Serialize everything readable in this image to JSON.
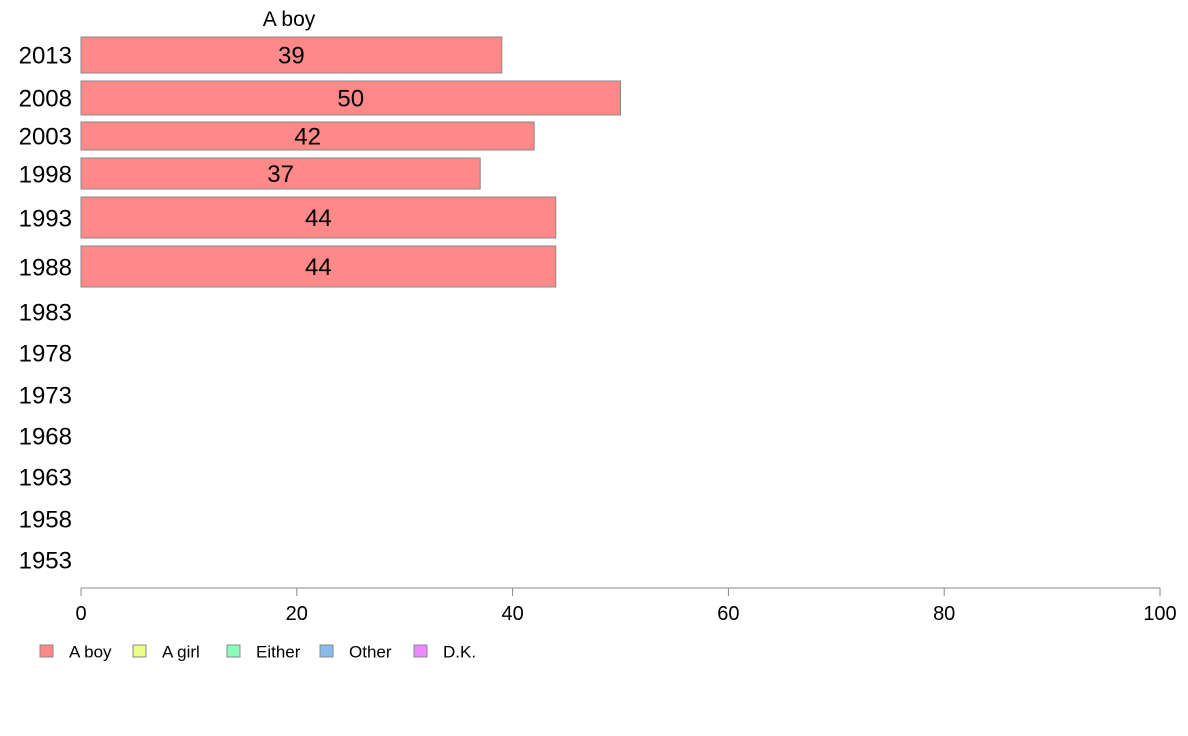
{
  "chart_data": {
    "type": "bar",
    "orientation": "horizontal",
    "title": "A boy",
    "categories": [
      "2013",
      "2008",
      "2003",
      "1998",
      "1993",
      "1988",
      "1983",
      "1978",
      "1973",
      "1968",
      "1963",
      "1958",
      "1953"
    ],
    "series": [
      {
        "name": "A boy",
        "color": "#ff8888",
        "values": [
          39,
          50,
          42,
          37,
          44,
          44,
          null,
          null,
          null,
          null,
          null,
          null,
          null
        ],
        "labels": [
          "39",
          "50",
          "42",
          "37",
          "44",
          "44",
          "",
          "",
          "",
          "",
          "",
          "",
          ""
        ]
      }
    ],
    "xlim": [
      0,
      100
    ],
    "xticks": [
      "0",
      "20",
      "40",
      "60",
      "80",
      "100"
    ],
    "grid": false,
    "legend_position": "bottom-left",
    "legend": [
      {
        "label": "A boy",
        "color": "#ff8888"
      },
      {
        "label": "A girl",
        "color": "#eeff88"
      },
      {
        "label": "Either",
        "color": "#88ffbb"
      },
      {
        "label": "Other",
        "color": "#88bbee"
      },
      {
        "label": "D.K.",
        "color": "#ee88ff"
      }
    ]
  }
}
